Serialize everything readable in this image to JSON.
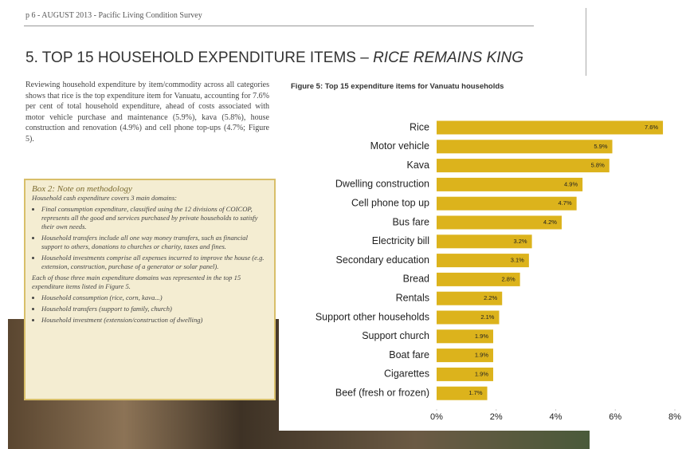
{
  "header": "p 6 - AUGUST 2013 - Pacific Living Condition Survey",
  "title": {
    "main": "5. TOP 15 HOUSEHOLD EXPENDITURE ITEMS – ",
    "emphasis": "RICE REMAINS KING"
  },
  "paragraph": "Reviewing household expenditure by item/commodity across all categories shows that rice is the top expenditure item for Vanuatu, accounting for 7.6% per cent of total household expenditure, ahead of costs associated with motor vehicle purchase and maintenance (5.9%), kava (5.8%), house construction and renovation (4.9%) and cell phone top-ups (4.7%; Figure 5).",
  "box": {
    "title": "Box 2: Note on methodology",
    "intro": "Household cash expenditure covers 3 main domains:",
    "bullets": [
      "Final consumption expenditure, classified using the 12 divisions of COICOP, represents all the good and services purchased by private households to satisfy their own needs.",
      "Household transfers include all one way money transfers, such as financial support to others, donations to churches or charity, taxes and fines.",
      "Household investments comprise all expenses incurred to improve the house (e.g. extension, construction, purchase of a generator or solar panel)."
    ],
    "note": "Each of those three main expenditure domains was represented in the top 15 expenditure items listed in Figure 5.",
    "examples": [
      "Household consumption (rice, corn, kava...)",
      "Household transfers (support to family, church)",
      "Household investment (extension/construction of dwelling)"
    ]
  },
  "chart_data": {
    "type": "bar",
    "orientation": "horizontal",
    "title": "Figure 5: Top 15 expenditure items for Vanuatu households",
    "categories": [
      "Rice",
      "Motor vehicle",
      "Kava",
      "Dwelling construction",
      "Cell phone top up",
      "Bus fare",
      "Electricity bill",
      "Secondary education",
      "Bread",
      "Rentals",
      "Support other households",
      "Support church",
      "Boat fare",
      "Cigarettes",
      "Beef (fresh or frozen)"
    ],
    "values": [
      7.6,
      5.9,
      5.8,
      4.9,
      4.7,
      4.2,
      3.2,
      3.1,
      2.8,
      2.2,
      2.1,
      1.9,
      1.9,
      1.9,
      1.7
    ],
    "value_labels": [
      "7.6%",
      "5.9%",
      "5.8%",
      "4.9%",
      "4.7%",
      "4.2%",
      "3.2%",
      "3.1%",
      "2.8%",
      "2.2%",
      "2.1%",
      "1.9%",
      "1.9%",
      "1.9%",
      "1.7%"
    ],
    "color": "#dcb31c",
    "xlim": [
      0,
      8
    ],
    "xticks": [
      {
        "value": 0,
        "label": "0%"
      },
      {
        "value": 2,
        "label": "2%"
      },
      {
        "value": 4,
        "label": "4%"
      },
      {
        "value": 6,
        "label": "6%"
      },
      {
        "value": 8,
        "label": "8%"
      }
    ]
  }
}
